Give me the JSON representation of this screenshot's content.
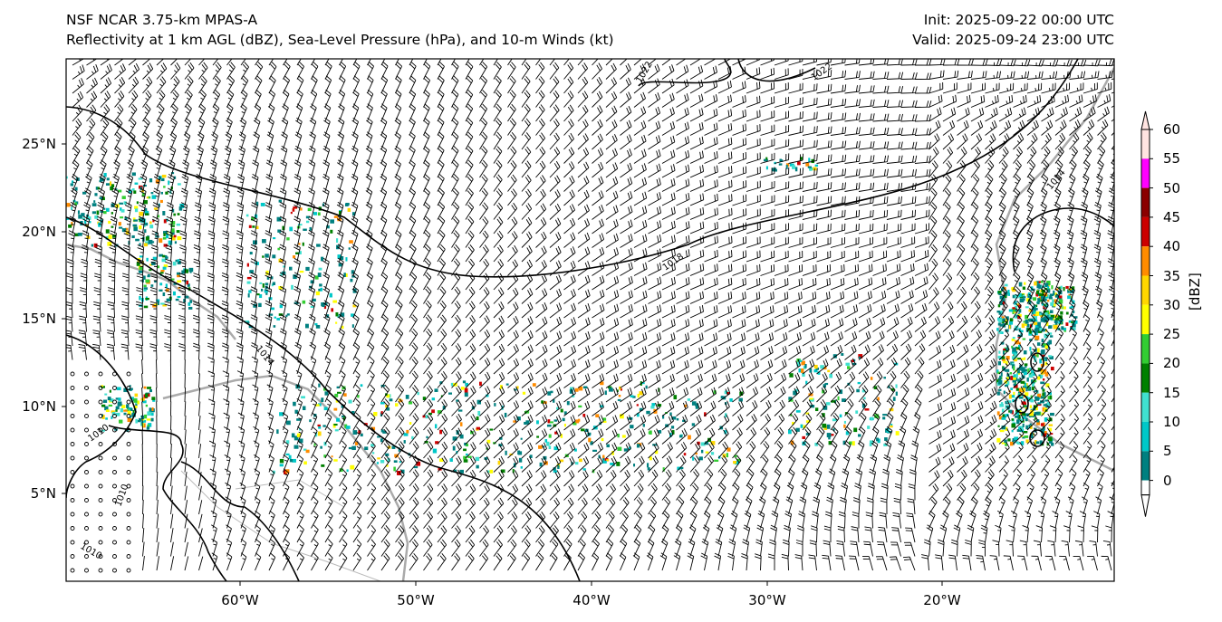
{
  "header": {
    "model": "NSF NCAR 3.75-km MPAS-A",
    "fields": "Reflectivity at 1 km AGL (dBZ), Sea-Level Pressure (hPa), and 10-m Winds (kt)",
    "init": "Init: 2025-09-22 00:00 UTC",
    "valid": "Valid: 2025-09-24 23:00 UTC"
  },
  "axes": {
    "lat_labels": [
      "25°N",
      "20°N",
      "15°N",
      "10°N",
      "5°N"
    ],
    "lon_labels": [
      "60°W",
      "50°W",
      "40°W",
      "30°W",
      "20°W"
    ],
    "lat_range": [
      0,
      30
    ],
    "lon_range": [
      -70,
      -10
    ]
  },
  "isobar_labels": [
    "1022",
    "1022",
    "1018",
    "1014",
    "1010",
    "1010",
    "1010",
    "1014"
  ],
  "colorbar": {
    "unit": "[dBZ]",
    "ticks": [
      "0",
      "5",
      "10",
      "15",
      "20",
      "25",
      "30",
      "35",
      "40",
      "45",
      "50",
      "55",
      "60"
    ],
    "colors": [
      "#008080",
      "#00c8c8",
      "#40e0d0",
      "#008000",
      "#32cd32",
      "#ffff00",
      "#ffd700",
      "#ff8c00",
      "#cc0000",
      "#8b0000",
      "#ff00ff",
      "#ffe4e1"
    ]
  }
}
